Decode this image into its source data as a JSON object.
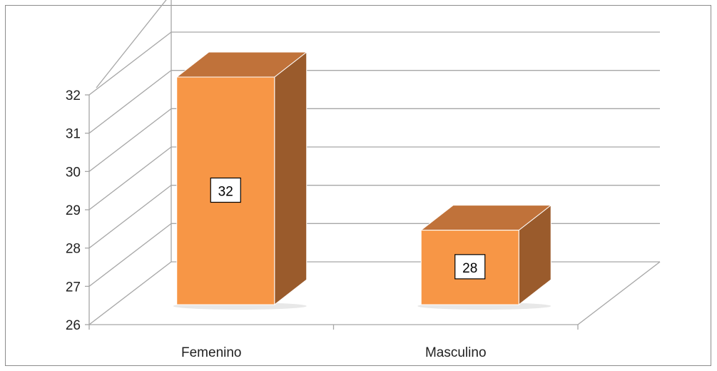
{
  "chart_data": {
    "type": "bar",
    "style": "3d",
    "categories": [
      "Femenino",
      "Masculino"
    ],
    "values": [
      32,
      28
    ],
    "data_labels": [
      "32",
      "28"
    ],
    "ylim": [
      26,
      32
    ],
    "yticks": [
      "26",
      "27",
      "28",
      "29",
      "30",
      "31",
      "32"
    ],
    "grid": true,
    "legend": "none",
    "colors": {
      "front": "#f79646",
      "top": "#c0723a",
      "side": "#9a5b2c",
      "grid": "#a6a6a6"
    }
  }
}
